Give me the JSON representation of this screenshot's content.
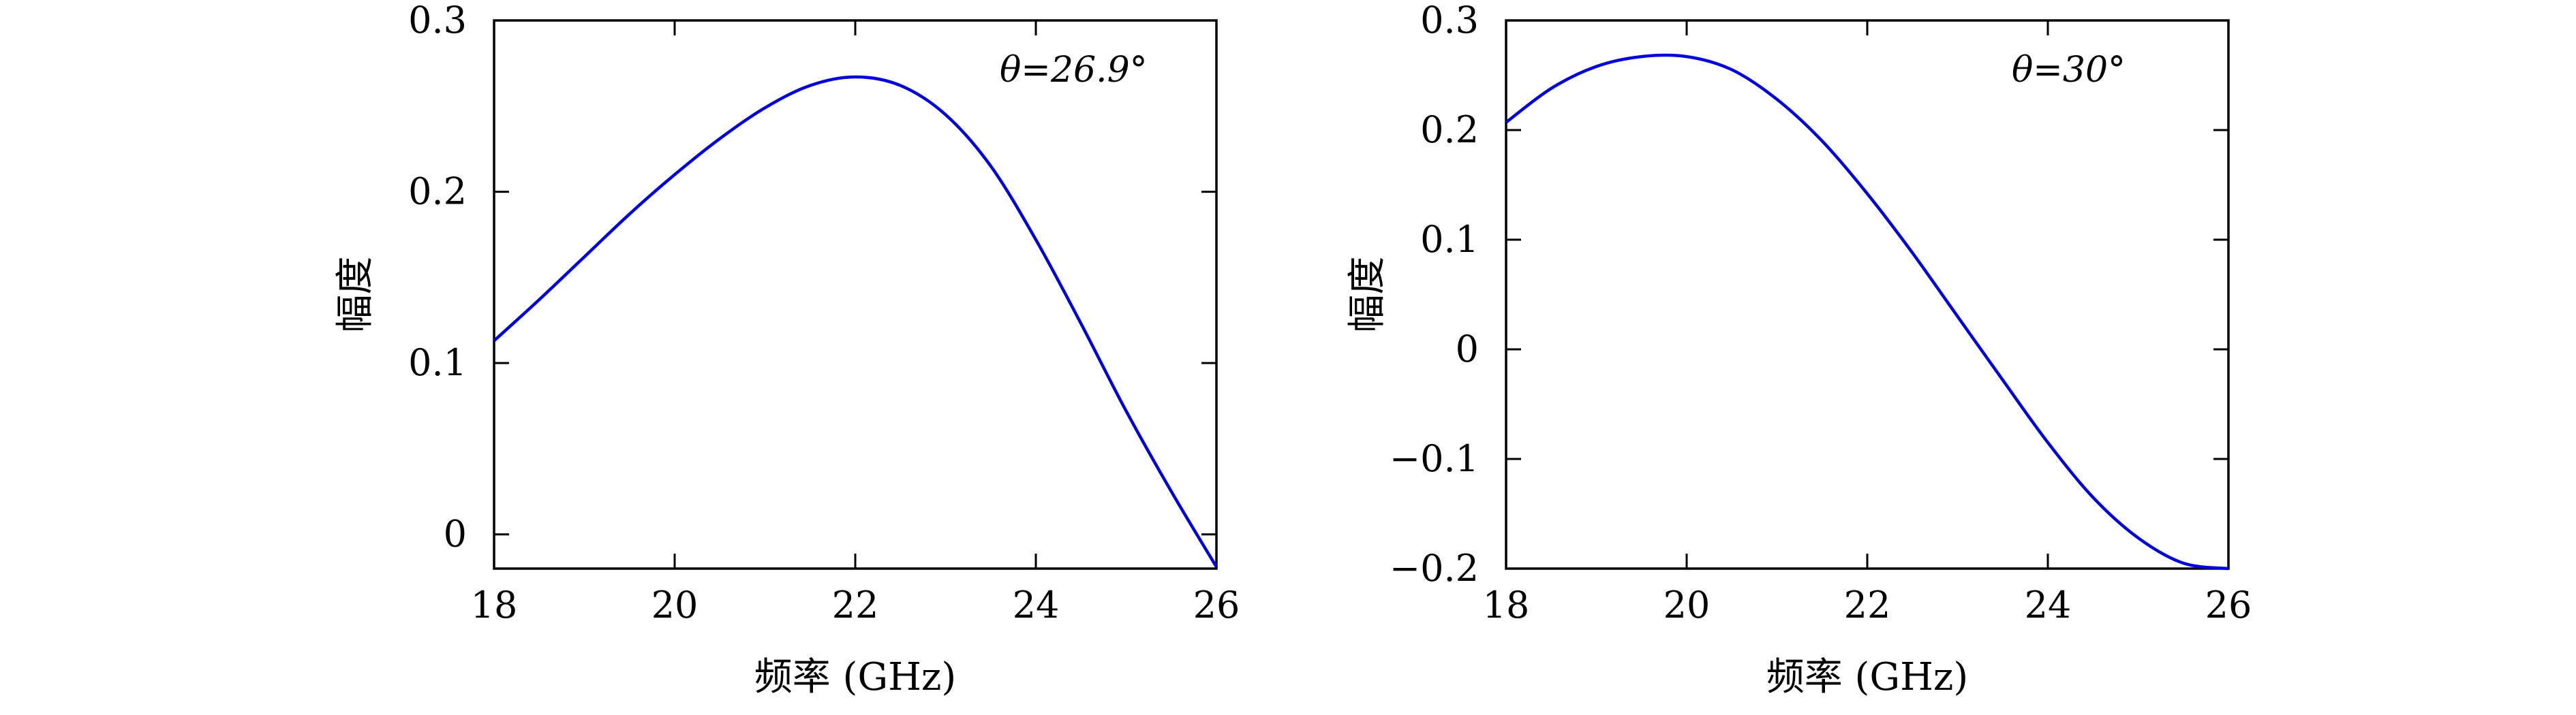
{
  "chart_data": [
    {
      "type": "line",
      "annotation": "θ=26.9°",
      "xlabel": "频率 (GHz)",
      "ylabel": "幅度",
      "xlim": [
        18,
        26
      ],
      "ylim": [
        -0.02,
        0.3
      ],
      "xticks": [
        18,
        20,
        22,
        24,
        26
      ],
      "yticks": [
        0,
        0.1,
        0.2,
        0.3
      ],
      "xtick_labels": [
        "18",
        "20",
        "22",
        "24",
        "26"
      ],
      "ytick_labels": [
        "0",
        "0.1",
        "0.2",
        "0.3"
      ],
      "grid": false,
      "series": [
        {
          "color": "#0000dd",
          "x": [
            18,
            18.5,
            19,
            19.5,
            20,
            20.5,
            21,
            21.5,
            22,
            22.5,
            23,
            23.5,
            24,
            24.5,
            25,
            25.5,
            26
          ],
          "y": [
            0.113,
            0.137,
            0.162,
            0.187,
            0.21,
            0.231,
            0.249,
            0.262,
            0.267,
            0.262,
            0.245,
            0.215,
            0.172,
            0.123,
            0.072,
            0.025,
            -0.019
          ]
        }
      ]
    },
    {
      "type": "line",
      "annotation": "θ=30°",
      "xlabel": "频率 (GHz)",
      "ylabel": "幅度",
      "xlim": [
        18,
        26
      ],
      "ylim": [
        -0.2,
        0.3
      ],
      "xticks": [
        18,
        20,
        22,
        24,
        26
      ],
      "yticks": [
        -0.2,
        -0.1,
        0,
        0.1,
        0.2,
        0.3
      ],
      "xtick_labels": [
        "18",
        "20",
        "22",
        "24",
        "26"
      ],
      "ytick_labels": [
        "−0.2",
        "−0.1",
        "0",
        "0.1",
        "0.2",
        "0.3"
      ],
      "grid": false,
      "series": [
        {
          "color": "#0000dd",
          "x": [
            18,
            18.5,
            19,
            19.5,
            20,
            20.5,
            21,
            21.5,
            22,
            22.5,
            23,
            23.5,
            24,
            24.5,
            25,
            25.5,
            26
          ],
          "y": [
            0.207,
            0.238,
            0.258,
            0.267,
            0.267,
            0.255,
            0.228,
            0.19,
            0.142,
            0.088,
            0.03,
            -0.028,
            -0.085,
            -0.135,
            -0.172,
            -0.195,
            -0.2
          ]
        }
      ]
    }
  ]
}
